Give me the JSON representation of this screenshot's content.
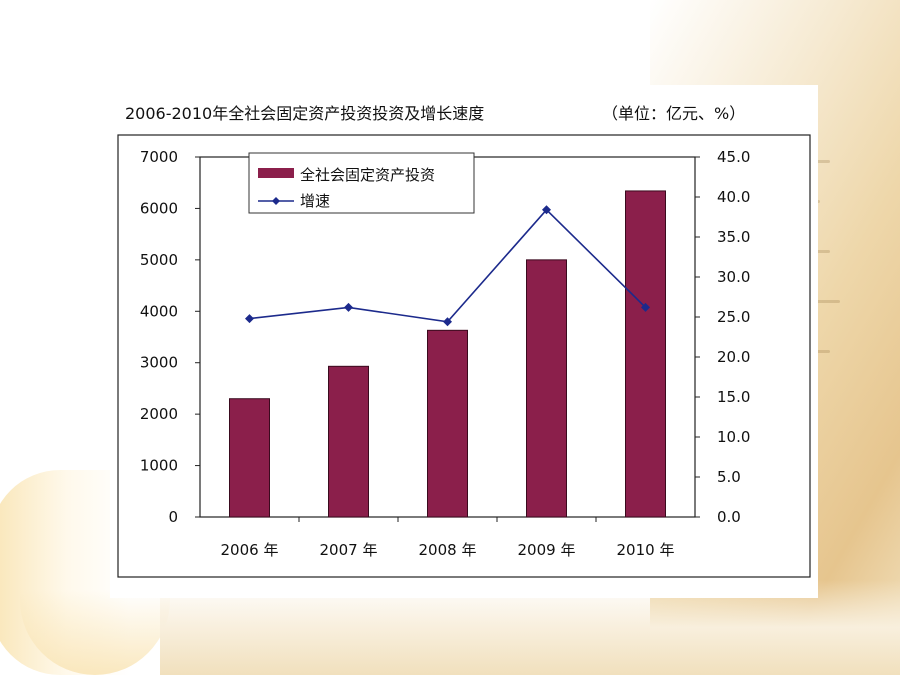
{
  "chart_data": {
    "type": "bar",
    "title": "2006-2010年全社会固定资产投资投资及增长速度",
    "unit_note": "（单位：亿元、%）",
    "categories": [
      "2006 年",
      "2007 年",
      "2008 年",
      "2009 年",
      "2010 年"
    ],
    "series": [
      {
        "name": "全社会固定资产投资",
        "type": "bar",
        "axis": "left",
        "color": "#8b1f4b",
        "values": [
          2300,
          2930,
          3630,
          5000,
          6340
        ]
      },
      {
        "name": "增速",
        "type": "line",
        "axis": "right",
        "color": "#1c2a8c",
        "values": [
          24.8,
          26.2,
          24.4,
          38.4,
          26.2
        ]
      }
    ],
    "y_left": {
      "min": 0,
      "max": 7000,
      "ticks": [
        "0",
        "1000",
        "2000",
        "3000",
        "4000",
        "5000",
        "6000",
        "7000"
      ]
    },
    "y_right": {
      "min": 0,
      "max": 45,
      "ticks": [
        "0.0",
        "5.0",
        "10.0",
        "15.0",
        "20.0",
        "25.0",
        "30.0",
        "35.0",
        "40.0",
        "45.0"
      ]
    },
    "grid": false,
    "legend_position": "top-left"
  }
}
